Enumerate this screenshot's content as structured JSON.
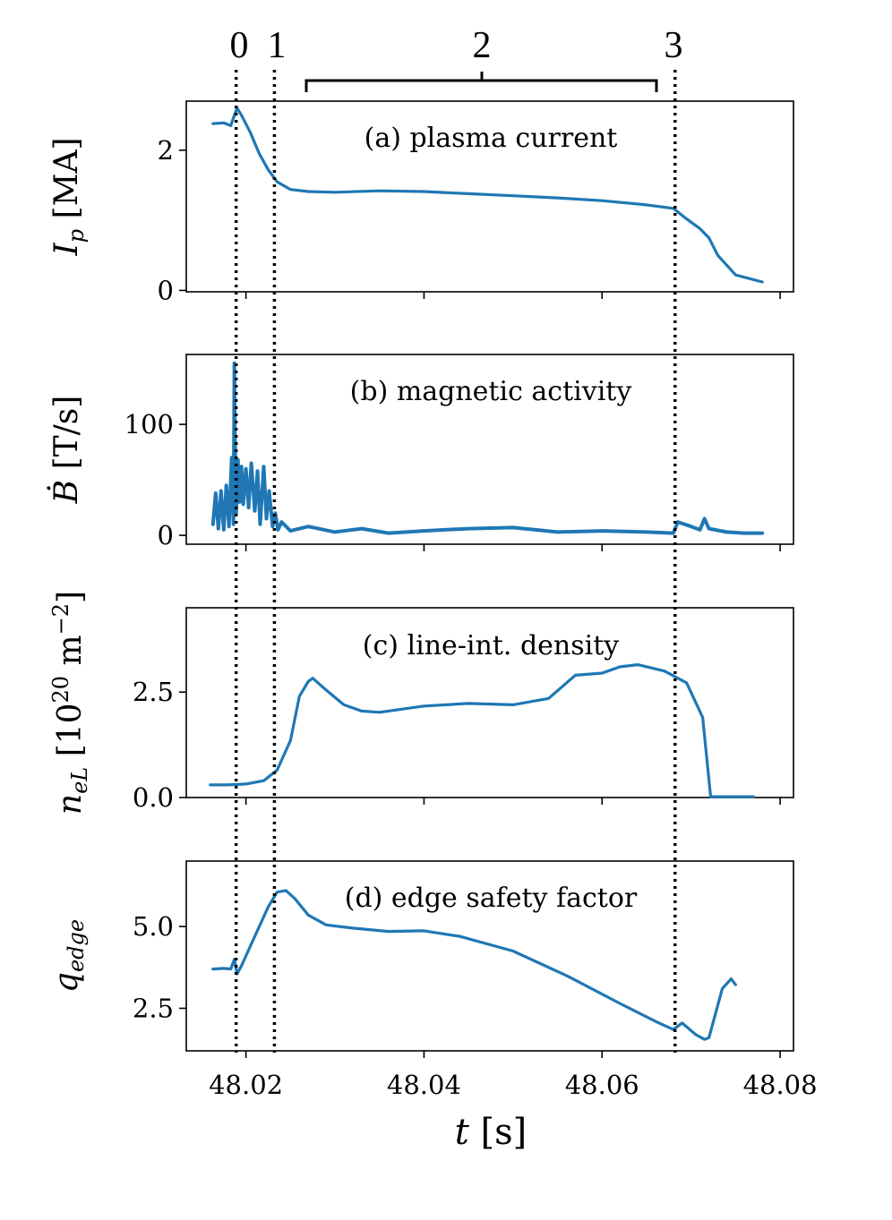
{
  "figure": {
    "xlabel_var": "t",
    "xlabel_unit": " [s]",
    "xticks": [
      "48.02",
      "48.04",
      "48.06",
      "48.08"
    ],
    "line_color": "#1f77b4",
    "phase_labels": [
      "0",
      "1",
      "2",
      "3"
    ]
  },
  "chart_data": [
    {
      "type": "line",
      "annotation": "(a) plasma current",
      "ylabel_var": "I",
      "ylabel_sub": "p",
      "ylabel_unit": " [MA]",
      "xlim": [
        48.0133,
        48.0815
      ],
      "ylim": [
        -0.02,
        2.7
      ],
      "yticks": [
        0,
        2
      ],
      "ytick_labels": [
        "0",
        "2"
      ],
      "x": [
        48.0163,
        48.0175,
        48.0183,
        48.0187,
        48.019,
        48.0195,
        48.0205,
        48.0215,
        48.0225,
        48.0235,
        48.025,
        48.027,
        48.03,
        48.035,
        48.04,
        48.045,
        48.05,
        48.055,
        48.06,
        48.065,
        48.068,
        48.0695,
        48.071,
        48.072,
        48.073,
        48.075,
        48.078
      ],
      "y": [
        2.38,
        2.39,
        2.35,
        2.5,
        2.6,
        2.5,
        2.25,
        1.95,
        1.72,
        1.55,
        1.44,
        1.41,
        1.4,
        1.42,
        1.41,
        1.38,
        1.35,
        1.32,
        1.28,
        1.22,
        1.17,
        1.02,
        0.88,
        0.75,
        0.5,
        0.22,
        0.12
      ]
    },
    {
      "type": "line",
      "annotation": "(b) magnetic activity",
      "ylabel_var": "Ḃ",
      "ylabel_unit": " [T/s]",
      "xlim": [
        48.0133,
        48.0815
      ],
      "ylim": [
        -8,
        163
      ],
      "yticks": [
        0,
        100
      ],
      "ytick_labels": [
        "0",
        "100"
      ],
      "x": [
        48.0163,
        48.0166,
        48.0169,
        48.0172,
        48.0175,
        48.0178,
        48.0181,
        48.0184,
        48.0186,
        48.0187,
        48.01875,
        48.0189,
        48.0191,
        48.0193,
        48.0195,
        48.0197,
        48.02,
        48.0203,
        48.0206,
        48.021,
        48.0213,
        48.0216,
        48.022,
        48.0223,
        48.0226,
        48.023,
        48.0233,
        48.0236,
        48.024,
        48.025,
        48.027,
        48.03,
        48.033,
        48.036,
        48.04,
        48.045,
        48.05,
        48.055,
        48.06,
        48.065,
        48.068,
        48.0685,
        48.07,
        48.071,
        48.0715,
        48.072,
        48.074,
        48.076,
        48.078
      ],
      "y": [
        10,
        38,
        6,
        40,
        5,
        45,
        8,
        70,
        10,
        155,
        95,
        20,
        68,
        30,
        62,
        28,
        60,
        25,
        65,
        22,
        58,
        10,
        62,
        15,
        40,
        8,
        20,
        5,
        12,
        4,
        8,
        3,
        6,
        2,
        4,
        6,
        7,
        3,
        4,
        3,
        2,
        12,
        8,
        5,
        15,
        6,
        3,
        2,
        2
      ]
    },
    {
      "type": "line",
      "annotation": "(c) line-int. density",
      "ylabel_var": "n",
      "ylabel_sub": "eL",
      "ylabel_unit": " [10",
      "ylabel_sup": "20",
      "ylabel_unit2": " m",
      "ylabel_sup2": "−2",
      "ylabel_end": "]",
      "xlim": [
        48.0133,
        48.0815
      ],
      "ylim": [
        0,
        4.5
      ],
      "yticks": [
        0,
        2.5
      ],
      "ytick_labels": [
        "0.0",
        "2.5"
      ],
      "x": [
        48.016,
        48.018,
        48.02,
        48.022,
        48.0235,
        48.025,
        48.026,
        48.027,
        48.0275,
        48.029,
        48.031,
        48.033,
        48.035,
        48.04,
        48.045,
        48.05,
        48.054,
        48.057,
        48.06,
        48.062,
        48.064,
        48.067,
        48.0695,
        48.0713,
        48.0722,
        48.074,
        48.077
      ],
      "y": [
        0.3,
        0.3,
        0.32,
        0.4,
        0.65,
        1.35,
        2.4,
        2.75,
        2.83,
        2.55,
        2.2,
        2.05,
        2.02,
        2.17,
        2.23,
        2.2,
        2.35,
        2.9,
        2.95,
        3.1,
        3.15,
        3.0,
        2.72,
        1.9,
        0.02,
        0.02,
        0.02
      ]
    },
    {
      "type": "line",
      "annotation": "(d) edge safety factor",
      "ylabel_var": "q",
      "ylabel_sub": "edge",
      "ylabel_unit": "",
      "xlim": [
        48.0133,
        48.0815
      ],
      "ylim": [
        1.2,
        7.0
      ],
      "yticks": [
        2.5,
        5.0
      ],
      "ytick_labels": [
        "2.5",
        "5.0"
      ],
      "x": [
        48.0163,
        48.0175,
        48.0183,
        48.0187,
        48.019,
        48.0195,
        48.021,
        48.0225,
        48.0235,
        48.0245,
        48.0255,
        48.027,
        48.029,
        48.032,
        48.036,
        48.04,
        48.044,
        48.05,
        48.056,
        48.062,
        48.066,
        48.068,
        48.069,
        48.0705,
        48.0715,
        48.072,
        48.0735,
        48.0745,
        48.075
      ],
      "y": [
        3.7,
        3.72,
        3.7,
        4.0,
        3.55,
        3.8,
        4.7,
        5.6,
        6.05,
        6.1,
        5.85,
        5.35,
        5.05,
        4.95,
        4.85,
        4.87,
        4.7,
        4.25,
        3.5,
        2.65,
        2.1,
        1.85,
        2.05,
        1.7,
        1.55,
        1.6,
        3.1,
        3.4,
        3.22
      ]
    }
  ]
}
